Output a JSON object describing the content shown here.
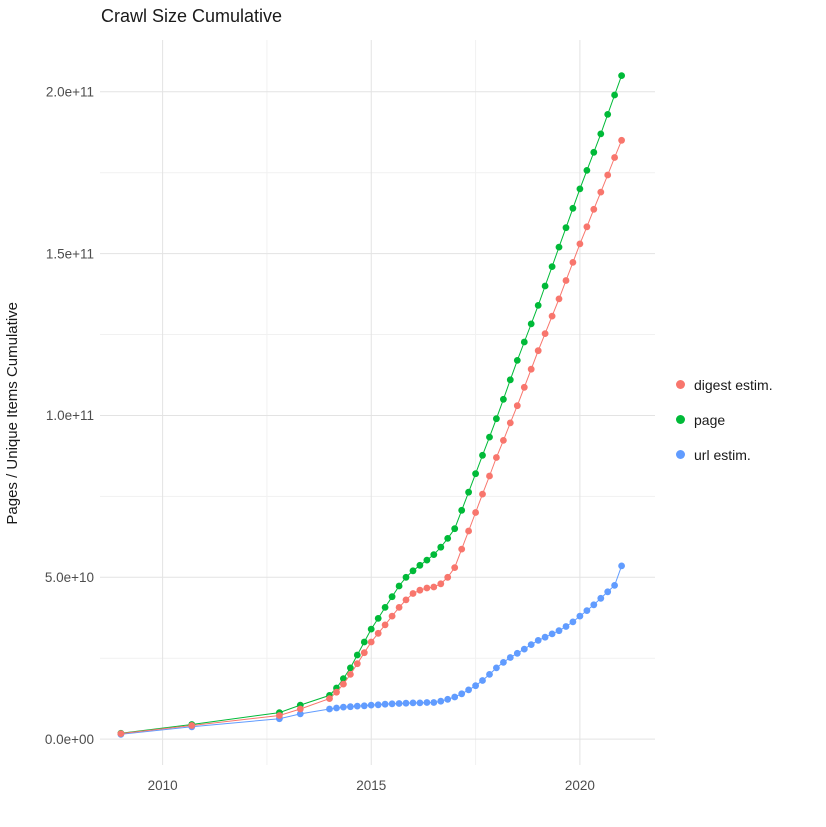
{
  "title": "Crawl Size Cumulative",
  "y_axis_label": "Pages / Unique Items Cumulative",
  "legend": {
    "items": [
      {
        "label": "digest estim."
      },
      {
        "label": "page"
      },
      {
        "label": "url estim."
      }
    ]
  },
  "chart_data": {
    "type": "scatter",
    "title": "Crawl Size Cumulative",
    "xlabel": "",
    "ylabel": "Pages / Unique Items Cumulative",
    "x_unit": "year (decimal)",
    "y_unit": "pages / unique items, in billions (1e9)",
    "grid": true,
    "legend_position": "right",
    "xlim": [
      2008.5,
      2021.8
    ],
    "ylim_billions": [
      -8,
      216
    ],
    "x_tick_values": [
      2010,
      2015,
      2020
    ],
    "x_tick_labels": [
      "2010",
      "2015",
      "2020"
    ],
    "y_tick_values_billions": [
      0,
      50,
      100,
      150,
      200
    ],
    "y_tick_labels": [
      "0.0e+00",
      "5.0e+10",
      "1.0e+11",
      "1.5e+11",
      "2.0e+11"
    ],
    "x_minor_ticks": [
      2012.5,
      2017.5
    ],
    "y_minor_ticks_billions": [
      25,
      75,
      125,
      175
    ],
    "series": [
      {
        "name": "digest estim.",
        "color": "#F8766D",
        "points": [
          [
            2009.0,
            1.7
          ],
          [
            2010.7,
            4.2
          ],
          [
            2012.8,
            7.3
          ],
          [
            2013.3,
            9.3
          ],
          [
            2014.0,
            12.5
          ],
          [
            2014.167,
            14.5
          ],
          [
            2014.333,
            17.0
          ],
          [
            2014.5,
            20.0
          ],
          [
            2014.667,
            23.3
          ],
          [
            2014.833,
            26.7
          ],
          [
            2015.0,
            30.0
          ],
          [
            2015.167,
            32.7
          ],
          [
            2015.333,
            35.3
          ],
          [
            2015.5,
            38.0
          ],
          [
            2015.667,
            40.7
          ],
          [
            2015.833,
            43.0
          ],
          [
            2016.0,
            45.0
          ],
          [
            2016.167,
            46.0
          ],
          [
            2016.333,
            46.7
          ],
          [
            2016.5,
            47.0
          ],
          [
            2016.667,
            48.0
          ],
          [
            2016.833,
            50.0
          ],
          [
            2017.0,
            53.0
          ],
          [
            2017.167,
            58.7
          ],
          [
            2017.333,
            64.3
          ],
          [
            2017.5,
            70.0
          ],
          [
            2017.667,
            75.7
          ],
          [
            2017.833,
            81.3
          ],
          [
            2018.0,
            87.0
          ],
          [
            2018.167,
            92.3
          ],
          [
            2018.333,
            97.7
          ],
          [
            2018.5,
            103.0
          ],
          [
            2018.667,
            108.7
          ],
          [
            2018.833,
            114.3
          ],
          [
            2019.0,
            120.0
          ],
          [
            2019.167,
            125.3
          ],
          [
            2019.333,
            130.7
          ],
          [
            2019.5,
            136.0
          ],
          [
            2019.667,
            141.7
          ],
          [
            2019.833,
            147.3
          ],
          [
            2020.0,
            153.0
          ],
          [
            2020.167,
            158.3
          ],
          [
            2020.333,
            163.7
          ],
          [
            2020.5,
            169.0
          ],
          [
            2020.667,
            174.3
          ],
          [
            2020.833,
            179.7
          ],
          [
            2021.0,
            185.0
          ]
        ]
      },
      {
        "name": "page",
        "color": "#00BA38",
        "points": [
          [
            2009.0,
            1.8
          ],
          [
            2010.7,
            4.5
          ],
          [
            2012.8,
            8.2
          ],
          [
            2013.3,
            10.5
          ],
          [
            2014.0,
            13.5
          ],
          [
            2014.167,
            15.8
          ],
          [
            2014.333,
            18.7
          ],
          [
            2014.5,
            22.0
          ],
          [
            2014.667,
            26.0
          ],
          [
            2014.833,
            30.0
          ],
          [
            2015.0,
            34.0
          ],
          [
            2015.167,
            37.3
          ],
          [
            2015.333,
            40.7
          ],
          [
            2015.5,
            44.0
          ],
          [
            2015.667,
            47.3
          ],
          [
            2015.833,
            50.0
          ],
          [
            2016.0,
            52.0
          ],
          [
            2016.167,
            53.7
          ],
          [
            2016.333,
            55.3
          ],
          [
            2016.5,
            57.0
          ],
          [
            2016.667,
            59.3
          ],
          [
            2016.833,
            62.0
          ],
          [
            2017.0,
            65.0
          ],
          [
            2017.167,
            70.7
          ],
          [
            2017.333,
            76.3
          ],
          [
            2017.5,
            82.0
          ],
          [
            2017.667,
            87.7
          ],
          [
            2017.833,
            93.3
          ],
          [
            2018.0,
            99.0
          ],
          [
            2018.167,
            105.0
          ],
          [
            2018.333,
            111.0
          ],
          [
            2018.5,
            117.0
          ],
          [
            2018.667,
            122.7
          ],
          [
            2018.833,
            128.3
          ],
          [
            2019.0,
            134.0
          ],
          [
            2019.167,
            140.0
          ],
          [
            2019.333,
            146.0
          ],
          [
            2019.5,
            152.0
          ],
          [
            2019.667,
            158.0
          ],
          [
            2019.833,
            164.0
          ],
          [
            2020.0,
            170.0
          ],
          [
            2020.167,
            175.7
          ],
          [
            2020.333,
            181.3
          ],
          [
            2020.5,
            187.0
          ],
          [
            2020.667,
            193.0
          ],
          [
            2020.833,
            199.0
          ],
          [
            2021.0,
            205.0
          ]
        ]
      },
      {
        "name": "url estim.",
        "color": "#619CFF",
        "points": [
          [
            2009.0,
            1.5
          ],
          [
            2010.7,
            3.8
          ],
          [
            2012.8,
            6.3
          ],
          [
            2013.3,
            7.8
          ],
          [
            2014.0,
            9.3
          ],
          [
            2014.167,
            9.6
          ],
          [
            2014.333,
            9.9
          ],
          [
            2014.5,
            10.0
          ],
          [
            2014.667,
            10.2
          ],
          [
            2014.833,
            10.3
          ],
          [
            2015.0,
            10.5
          ],
          [
            2015.167,
            10.6
          ],
          [
            2015.333,
            10.8
          ],
          [
            2015.5,
            10.9
          ],
          [
            2015.667,
            11.0
          ],
          [
            2015.833,
            11.1
          ],
          [
            2016.0,
            11.2
          ],
          [
            2016.167,
            11.2
          ],
          [
            2016.333,
            11.3
          ],
          [
            2016.5,
            11.3
          ],
          [
            2016.667,
            11.7
          ],
          [
            2016.833,
            12.3
          ],
          [
            2017.0,
            13.0
          ],
          [
            2017.167,
            14.0
          ],
          [
            2017.333,
            15.2
          ],
          [
            2017.5,
            16.5
          ],
          [
            2017.667,
            18.1
          ],
          [
            2017.833,
            20.0
          ],
          [
            2018.0,
            22.0
          ],
          [
            2018.167,
            23.7
          ],
          [
            2018.333,
            25.2
          ],
          [
            2018.5,
            26.5
          ],
          [
            2018.667,
            27.8
          ],
          [
            2018.833,
            29.2
          ],
          [
            2019.0,
            30.5
          ],
          [
            2019.167,
            31.5
          ],
          [
            2019.333,
            32.5
          ],
          [
            2019.5,
            33.5
          ],
          [
            2019.667,
            34.8
          ],
          [
            2019.833,
            36.2
          ],
          [
            2020.0,
            38.0
          ],
          [
            2020.167,
            39.7
          ],
          [
            2020.333,
            41.5
          ],
          [
            2020.5,
            43.5
          ],
          [
            2020.667,
            45.5
          ],
          [
            2020.833,
            47.5
          ],
          [
            2021.0,
            53.5
          ]
        ]
      }
    ]
  }
}
